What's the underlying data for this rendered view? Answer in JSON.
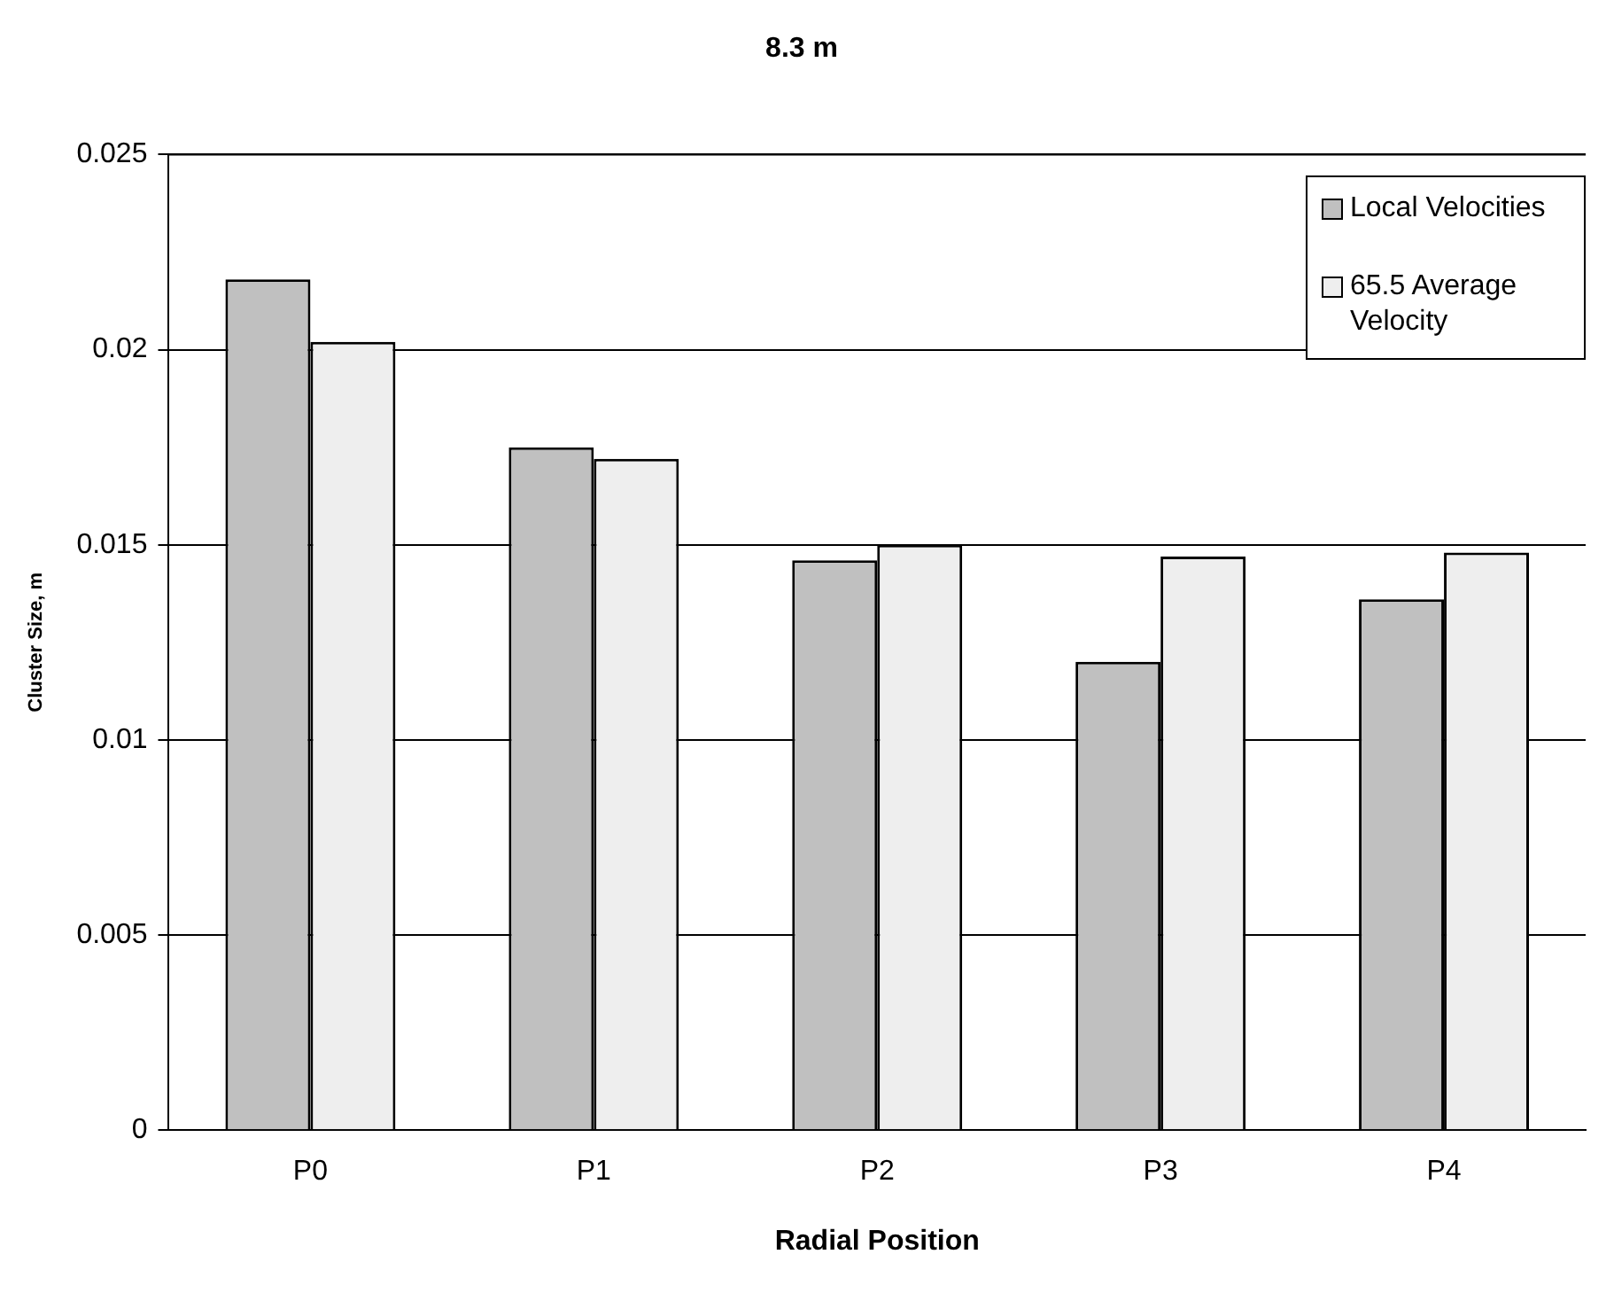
{
  "chart_data": {
    "type": "bar",
    "title": "8.3 m",
    "xlabel": "Radial Position",
    "ylabel": "Cluster Size, m",
    "categories": [
      "P0",
      "P1",
      "P2",
      "P3",
      "P4"
    ],
    "series": [
      {
        "name": "Local Velocities",
        "color": "#c0c0c0",
        "values": [
          0.0218,
          0.0175,
          0.0146,
          0.012,
          0.0136
        ]
      },
      {
        "name": "65.5 Average Velocity",
        "color": "#eeeeee",
        "values": [
          0.0202,
          0.0172,
          0.015,
          0.0147,
          0.0148
        ]
      }
    ],
    "ylim": [
      0,
      0.025
    ],
    "yticks": [
      0,
      0.005,
      0.01,
      0.015,
      0.02,
      0.025
    ],
    "grid": "y",
    "legend": "top right"
  }
}
